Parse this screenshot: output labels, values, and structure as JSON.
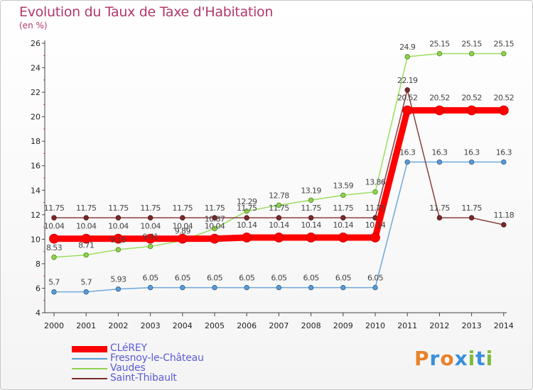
{
  "title": "Evolution du Taux de Taxe d'Habitation",
  "subtitle": "(en %)",
  "logo": "Proxiti",
  "chart_data": {
    "type": "line",
    "x": [
      "2000",
      "2001",
      "2002",
      "2003",
      "2004",
      "2005",
      "2006",
      "2007",
      "2008",
      "2009",
      "2010",
      "2011",
      "2012",
      "2013",
      "2014"
    ],
    "ylim": [
      4,
      26
    ],
    "yticks": [
      4,
      6,
      8,
      10,
      12,
      14,
      16,
      18,
      20,
      22,
      24,
      26
    ],
    "grid": false,
    "legend_position": "bottom-left",
    "series": [
      {
        "name": "CLéREY",
        "color": "#ff0000",
        "values": [
          10.04,
          10.04,
          10.04,
          10.04,
          10.04,
          10.04,
          10.14,
          10.14,
          10.14,
          10.14,
          10.14,
          20.52,
          20.52,
          20.52,
          20.52
        ],
        "labels": [
          "10.04",
          "10.04",
          "10.04",
          "10.04",
          "10.04",
          "10.04",
          "10.14",
          "10.14",
          "10.14",
          "10.14",
          "10.14",
          "20.52",
          "20.52",
          "20.52",
          "20.52"
        ]
      },
      {
        "name": "Fresnoy-le-Château",
        "color": "#5b9bd5",
        "values": [
          5.7,
          5.7,
          5.93,
          6.05,
          6.05,
          6.05,
          6.05,
          6.05,
          6.05,
          6.05,
          6.05,
          16.3,
          16.3,
          16.3,
          16.3
        ],
        "labels": [
          "5.7",
          "5.7",
          "5.93",
          "6.05",
          "6.05",
          "6.05",
          "6.05",
          "6.05",
          "6.05",
          "6.05",
          "6.05",
          "16.3",
          "16.3",
          "16.3",
          "16.3"
        ]
      },
      {
        "name": "Vaudes",
        "color": "#8fd14f",
        "values": [
          8.53,
          8.71,
          9.15,
          9.41,
          9.89,
          10.87,
          12.29,
          12.78,
          13.19,
          13.59,
          13.86,
          24.9,
          25.15,
          25.15,
          25.15
        ],
        "labels": [
          "8.53",
          "8.71",
          "9.15",
          "9.41",
          "9.89",
          "10.87",
          "12.29",
          "12.78",
          "13.19",
          "13.59",
          "13.86",
          "24.9",
          "25.15",
          "25.15",
          "25.15"
        ]
      },
      {
        "name": "Saint-Thibault",
        "color": "#7a2a2a",
        "values": [
          11.75,
          11.75,
          11.75,
          11.75,
          11.75,
          11.75,
          11.75,
          11.75,
          11.75,
          11.75,
          11.75,
          22.19,
          11.75,
          11.75,
          11.18
        ],
        "labels": [
          "11.75",
          "11.75",
          "11.75",
          "11.75",
          "11.75",
          "11.75",
          "11.75",
          "11.75",
          "11.75",
          "11.75",
          "11.75",
          "22.19",
          "11.75",
          "11.75",
          "11.18"
        ]
      }
    ]
  }
}
